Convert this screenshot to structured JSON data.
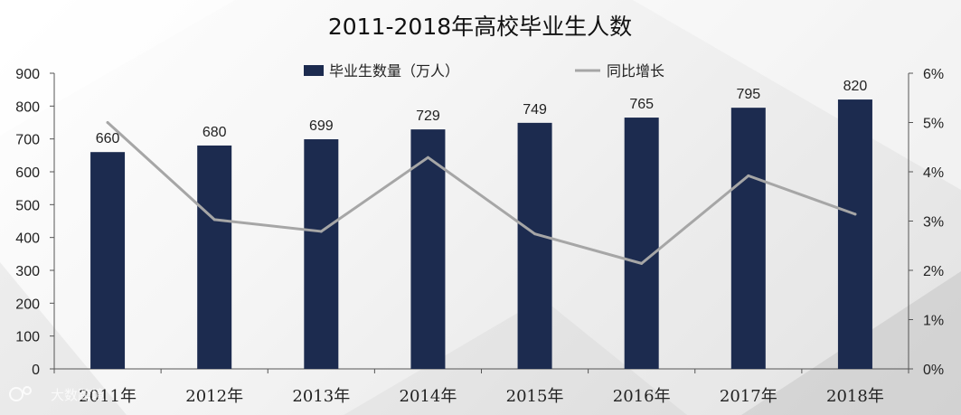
{
  "watermark": "大数跨境",
  "chart_data": {
    "type": "bar",
    "title": "2011-2018年高校毕业生人数",
    "categories": [
      "2011年",
      "2012年",
      "2013年",
      "2014年",
      "2015年",
      "2016年",
      "2017年",
      "2018年"
    ],
    "series": [
      {
        "name": "毕业生数量（万人）",
        "type": "bar",
        "axis": "left",
        "color": "#1c2b4f",
        "values": [
          660,
          680,
          699,
          729,
          749,
          765,
          795,
          820
        ],
        "labels": [
          "660",
          "680",
          "699",
          "729",
          "749",
          "765",
          "795",
          "820"
        ]
      },
      {
        "name": "同比增长",
        "type": "line",
        "axis": "right",
        "color": "#a6a6a6",
        "values": [
          5.0,
          3.03,
          2.79,
          4.29,
          2.74,
          2.14,
          3.92,
          3.14
        ]
      }
    ],
    "ylim": [
      0,
      900
    ],
    "y_ticks": [
      "0",
      "100",
      "200",
      "300",
      "400",
      "500",
      "600",
      "700",
      "800",
      "900"
    ],
    "y2lim": [
      0,
      6
    ],
    "y2_ticks": [
      "0%",
      "1%",
      "2%",
      "3%",
      "4%",
      "5%",
      "6%"
    ],
    "legend_position": "top",
    "grid": false
  }
}
